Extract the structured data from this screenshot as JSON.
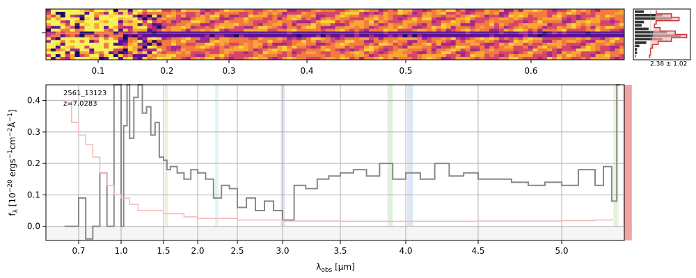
{
  "figure": {
    "annotation": {
      "object_id": "2561_13123",
      "redshift": "z=7.0283"
    },
    "histogram_label": "2.38 ± 1.02"
  },
  "spectrum_2d": {
    "top_tick_labels": [
      "0.1",
      "0.2",
      "0.3",
      "0.4",
      "0.5",
      "0.6"
    ],
    "top_tick_values": [
      0.1,
      0.2,
      0.3,
      0.4,
      0.5,
      0.6
    ]
  },
  "chart_data": {
    "type": "line",
    "title": "",
    "xlabel": "λobs [μm]",
    "ylabel": "fλ [10^-20 ergs^-1cm^-2Å^-1]",
    "xlabel_parts": {
      "symbol": "λ",
      "sub": "obs",
      "unit": " [μm]"
    },
    "ylabel_parts": {
      "symbol": "f",
      "sub": "λ",
      "rest": " [10",
      "exp1": "−20",
      "mid": " ergs",
      "exp2": "−1",
      "mid2": "cm",
      "exp3": "−2",
      "mid3": "Å",
      "exp4": "−1",
      "end": "]"
    },
    "x_tick_labels": [
      "0.7",
      "1.0",
      "1.5",
      "2.0",
      "2.5",
      "3.0",
      "3.5",
      "4.0",
      "4.5",
      "5.0"
    ],
    "x_tick_values": [
      0.7,
      1.0,
      1.5,
      2.0,
      2.5,
      3.0,
      3.5,
      4.0,
      4.5,
      5.0
    ],
    "y_tick_labels": [
      "0.0",
      "0.1",
      "0.2",
      "0.3",
      "0.4"
    ],
    "y_tick_values": [
      0.0,
      0.1,
      0.2,
      0.3,
      0.4
    ],
    "xlim": [
      0.55,
      5.4
    ],
    "ylim": [
      -0.045,
      0.45
    ],
    "grid": true,
    "series": [
      {
        "role": "flux",
        "color": "#888888",
        "x": [
          0.6,
          0.65,
          0.7,
          0.75,
          0.8,
          0.85,
          0.9,
          0.95,
          0.97,
          1.0,
          1.03,
          1.07,
          1.1,
          1.15,
          1.2,
          1.25,
          1.3,
          1.35,
          1.4,
          1.45,
          1.5,
          1.55,
          1.6,
          1.7,
          1.8,
          1.9,
          2.0,
          2.1,
          2.2,
          2.3,
          2.4,
          2.5,
          2.6,
          2.7,
          2.8,
          2.9,
          3.0,
          3.1,
          3.2,
          3.3,
          3.4,
          3.5,
          3.6,
          3.7,
          3.8,
          3.9,
          4.0,
          4.1,
          4.2,
          4.3,
          4.4,
          4.5,
          4.6,
          4.7,
          4.8,
          4.9,
          5.0,
          5.1,
          5.2,
          5.25,
          5.3,
          5.33,
          5.35
        ],
        "y": [
          0.0,
          0.0,
          0.09,
          -0.04,
          0.0,
          0.17,
          0.0,
          0.45,
          0.45,
          0.0,
          0.32,
          0.45,
          0.28,
          0.41,
          0.45,
          0.36,
          0.38,
          0.29,
          0.33,
          0.22,
          0.21,
          0.18,
          0.19,
          0.17,
          0.15,
          0.18,
          0.17,
          0.15,
          0.09,
          0.13,
          0.12,
          0.06,
          0.09,
          0.05,
          0.08,
          0.05,
          0.02,
          0.13,
          0.12,
          0.15,
          0.16,
          0.17,
          0.18,
          0.16,
          0.2,
          0.15,
          0.17,
          0.15,
          0.2,
          0.16,
          0.17,
          0.15,
          0.15,
          0.14,
          0.13,
          0.14,
          0.13,
          0.18,
          0.13,
          0.19,
          0.08,
          0.45,
          0.45
        ]
      },
      {
        "role": "error",
        "color": "#f4b6b6",
        "x": [
          0.6,
          0.65,
          0.7,
          0.75,
          0.8,
          0.85,
          0.9,
          0.95,
          1.0,
          1.1,
          1.2,
          1.3,
          1.5,
          1.8,
          2.0,
          2.5,
          3.0,
          3.5,
          4.0,
          4.5,
          5.0,
          5.2,
          5.3
        ],
        "y": [
          0.4,
          0.33,
          0.29,
          0.26,
          0.22,
          0.17,
          0.13,
          0.1,
          0.09,
          0.07,
          0.05,
          0.05,
          0.04,
          0.03,
          0.025,
          0.02,
          0.017,
          0.016,
          0.016,
          0.017,
          0.018,
          0.02,
          0.025
        ]
      }
    ],
    "shaded_bands": [
      {
        "x": [
          1.52,
          1.56
        ],
        "color": "#e8f3d9"
      },
      {
        "x": [
          2.22,
          2.26
        ],
        "color": "#dff4f8"
      },
      {
        "x": [
          2.98,
          3.02
        ],
        "color": "#e3e3f4"
      },
      {
        "x": [
          3.86,
          3.9
        ],
        "color": "#dff0dc"
      },
      {
        "x": [
          4.01,
          4.05
        ],
        "color": "#dde8f6"
      },
      {
        "x": [
          5.31,
          5.34
        ],
        "color": "#e6f2dc"
      }
    ],
    "red_band": {
      "x": [
        5.37,
        5.42
      ],
      "color": "#f1a3a3"
    },
    "histogram": {
      "bins": [
        -3,
        -2.5,
        -2,
        -1.5,
        -1,
        -0.5,
        0,
        0.5,
        1,
        1.5,
        2,
        2.5,
        3,
        3.5,
        4
      ],
      "counts": [
        0.2,
        0.6,
        0.8,
        0.2,
        0.15,
        0.3,
        0.7,
        1.0,
        0.6,
        0.25,
        0.1,
        0.05,
        0.05,
        0.02
      ],
      "model_color": "#cc3333",
      "bar_color": "#333333"
    }
  }
}
